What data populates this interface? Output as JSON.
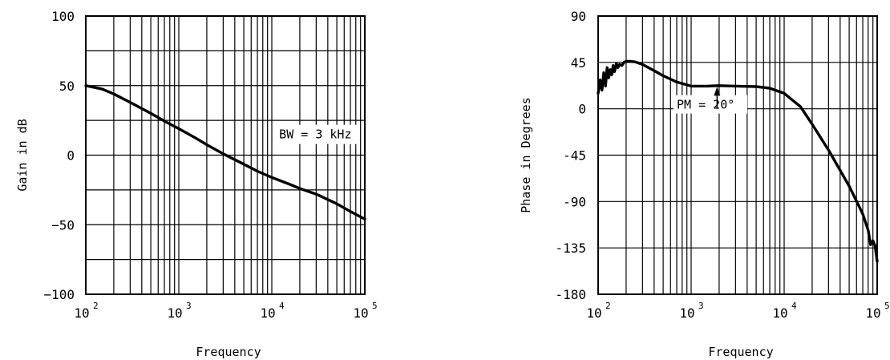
{
  "chart_data": [
    {
      "type": "line",
      "title": "",
      "xlabel": "Frequency",
      "ylabel": "Gain in dB",
      "x_scale": "log",
      "xlim": [
        100,
        100000
      ],
      "ylim": [
        -100,
        100
      ],
      "grid": true,
      "x_tick_labels": [
        {
          "base": "10",
          "exp": "2",
          "value": 100
        },
        {
          "base": "10",
          "exp": "3",
          "value": 1000
        },
        {
          "base": "10",
          "exp": "4",
          "value": 10000
        },
        {
          "base": "10",
          "exp": "5",
          "value": 100000
        }
      ],
      "y_tick_labels": [
        "100",
        "50",
        "0",
        "−50",
        "−100"
      ],
      "y_tick_values": [
        100,
        50,
        0,
        -50,
        -100
      ],
      "series": [
        {
          "x": [
            100,
            150,
            200,
            300,
            500,
            700,
            1000,
            1500,
            2000,
            3000,
            5000,
            7000,
            10000,
            15000,
            20000,
            30000,
            50000,
            70000,
            100000
          ],
          "y": [
            50,
            47.5,
            44,
            38,
            30,
            24.5,
            19,
            12.5,
            7.5,
            1,
            -6.5,
            -11.5,
            -16,
            -20.5,
            -24,
            -28,
            -35,
            -40.5,
            -46
          ]
        }
      ],
      "annotations": [
        {
          "text": "BW = 3 kHz",
          "x": 12000,
          "y": 12
        }
      ]
    },
    {
      "type": "line",
      "title": "",
      "xlabel": "Frequency",
      "ylabel": "Phase in Degrees",
      "x_scale": "log",
      "xlim": [
        100,
        100000
      ],
      "ylim": [
        -180,
        90
      ],
      "grid": true,
      "x_tick_labels": [
        {
          "base": "10",
          "exp": "2",
          "value": 100
        },
        {
          "base": "10",
          "exp": "3",
          "value": 1000
        },
        {
          "base": "10",
          "exp": "4",
          "value": 10000
        },
        {
          "base": "10",
          "exp": "5",
          "value": 100000
        }
      ],
      "y_tick_labels": [
        "90",
        "45",
        "0",
        "-45",
        "-90",
        "-135",
        "-180"
      ],
      "y_tick_values": [
        90,
        45,
        0,
        -45,
        -90,
        -135,
        -180
      ],
      "series": [
        {
          "x": [
            100,
            105,
            110,
            115,
            120,
            125,
            130,
            135,
            140,
            145,
            150,
            157,
            163,
            170,
            180,
            190,
            200,
            220,
            250,
            300,
            400,
            500,
            700,
            1000,
            1500,
            2000,
            3000,
            5000,
            7000,
            10000,
            15000,
            20000,
            30000,
            50000,
            70000,
            80000,
            85000,
            90000,
            95000,
            100000
          ],
          "y": [
            15,
            28,
            18,
            35,
            22,
            40,
            30,
            38,
            33,
            42,
            36,
            44,
            40,
            43,
            42,
            45,
            46,
            46,
            45.5,
            43,
            37,
            32,
            26,
            22,
            22,
            22.5,
            22,
            21.5,
            20,
            15,
            2,
            -15,
            -40,
            -75,
            -102,
            -118,
            -132,
            -128,
            -133,
            -148
          ]
        }
      ],
      "annotations": [
        {
          "text": "PM = 20°",
          "x": 700,
          "y": 0
        }
      ]
    }
  ]
}
